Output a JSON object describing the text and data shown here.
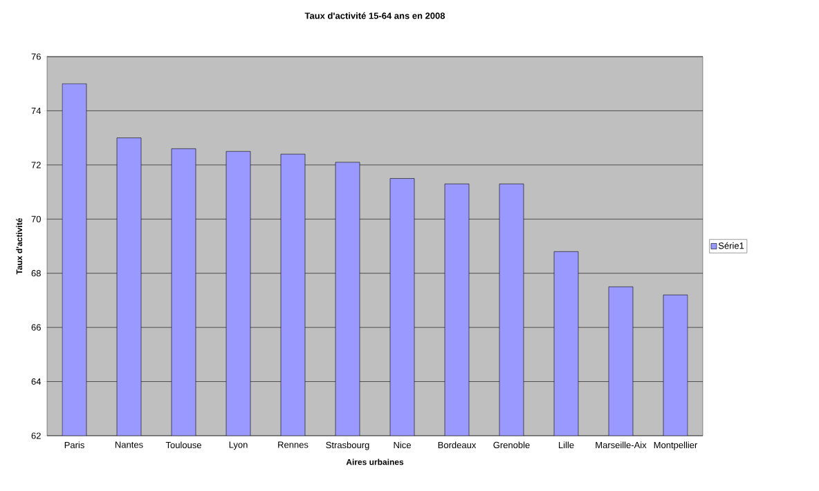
{
  "chart_data": {
    "type": "bar",
    "title": "Taux d'activité 15-64 ans en 2008",
    "xlabel": "Aires urbaines",
    "ylabel": "Taux d'activité",
    "categories": [
      "Paris",
      "Nantes",
      "Toulouse",
      "Lyon",
      "Rennes",
      "Strasbourg",
      "Nice",
      "Bordeaux",
      "Grenoble",
      "Lille",
      "Marseille-Aix",
      "Montpellier"
    ],
    "series": [
      {
        "name": "Série1",
        "color": "#9999ff",
        "values": [
          75,
          73,
          72.6,
          72.5,
          72.4,
          72.1,
          71.5,
          71.3,
          71.3,
          68.8,
          67.5,
          67.2
        ]
      }
    ],
    "ylim": [
      62,
      76
    ],
    "yticks": [
      62,
      64,
      66,
      68,
      70,
      72,
      74,
      76
    ],
    "grid": "y",
    "legend": "right"
  }
}
